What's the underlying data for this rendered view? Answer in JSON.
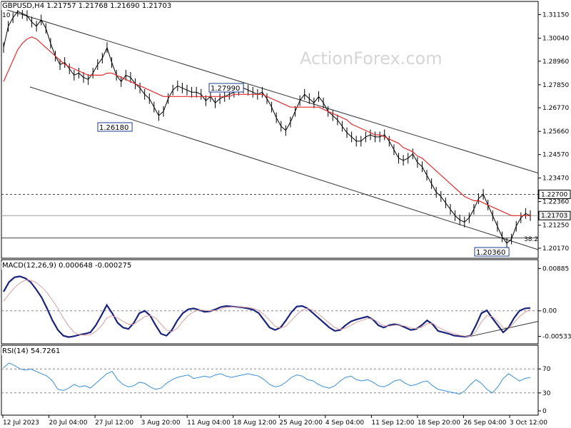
{
  "watermark": "ActionForex.com",
  "chart_data": [
    {
      "type": "line",
      "title": "GBPUSD,H4  1.21757 1.21768 1.21690 1.21703",
      "symbol": "GBPUSD,H4",
      "ohlc_last": {
        "open": 1.21757,
        "high": 1.21768,
        "low": 1.2169,
        "close": 1.21703
      },
      "y_ticks": [
        "1.31150",
        "1.30040",
        "1.28960",
        "1.27850",
        "1.26770",
        "1.25660",
        "1.24570",
        "1.23470",
        "1.22360",
        "1.21250",
        "1.20170"
      ],
      "ylim": [
        1.2017,
        1.3115
      ],
      "price_tags": [
        {
          "label": "1.22700",
          "value": 1.227,
          "style": "dashed"
        },
        {
          "label": "1.21703",
          "value": 1.21703,
          "style": "current"
        }
      ],
      "annotations": [
        {
          "label": "1.27990",
          "x": "18 Aug 12:00",
          "y": 1.2799
        },
        {
          "label": "1.26180",
          "x": "3 Aug 20:00",
          "y": 1.2618
        },
        {
          "label": "1.20360",
          "x": "3 Oct 12:00",
          "y": 1.2036
        },
        {
          "label": "38.2",
          "x": "3 Oct 12:00",
          "y": 1.2145
        },
        {
          "label": "10",
          "x": "12 Jul 2023",
          "y": 1.3142
        }
      ],
      "horizontal_levels": [
        1.227,
        1.21703,
        1.2065
      ],
      "channel": {
        "upper_start": [
          "12 Jul 2023",
          1.3142
        ],
        "upper_end": [
          "3 Oct 12:00",
          1.2389
        ],
        "lower_start": [
          "20 Jul 04:00",
          1.2775
        ],
        "lower_end": [
          "3 Oct 12:00",
          1.2028
        ]
      },
      "series": [
        {
          "name": "price",
          "color": "#000000",
          "values": [
            1.296,
            1.306,
            1.31,
            1.313,
            1.312,
            1.311,
            1.308,
            1.306,
            1.309,
            1.305,
            1.298,
            1.292,
            1.288,
            1.289,
            1.286,
            1.283,
            1.284,
            1.282,
            1.281,
            1.284,
            1.288,
            1.291,
            1.296,
            1.289,
            1.283,
            1.28,
            1.283,
            1.282,
            1.279,
            1.277,
            1.274,
            1.272,
            1.268,
            1.264,
            1.266,
            1.272,
            1.276,
            1.278,
            1.277,
            1.276,
            1.275,
            1.275,
            1.274,
            1.271,
            1.273,
            1.27,
            1.272,
            1.273,
            1.274,
            1.275,
            1.276,
            1.277,
            1.276,
            1.275,
            1.274,
            1.275,
            1.272,
            1.268,
            1.263,
            1.259,
            1.257,
            1.261,
            1.266,
            1.271,
            1.274,
            1.272,
            1.27,
            1.273,
            1.27,
            1.266,
            1.264,
            1.262,
            1.259,
            1.256,
            1.254,
            1.252,
            1.252,
            1.254,
            1.255,
            1.254,
            1.254,
            1.255,
            1.252,
            1.248,
            1.244,
            1.243,
            1.244,
            1.246,
            1.242,
            1.24,
            1.236,
            1.232,
            1.228,
            1.226,
            1.223,
            1.22,
            1.217,
            1.215,
            1.214,
            1.216,
            1.22,
            1.225,
            1.227,
            1.222,
            1.217,
            1.212,
            1.207,
            1.204,
            1.206,
            1.212,
            1.216,
            1.218,
            1.217
          ]
        },
        {
          "name": "ma",
          "color": "#e32d2d",
          "values": [
            1.28,
            1.285,
            1.29,
            1.295,
            1.298,
            1.3,
            1.301,
            1.3,
            1.298,
            1.296,
            1.294,
            1.292,
            1.29,
            1.288,
            1.287,
            1.286,
            1.285,
            1.284,
            1.283,
            1.283,
            1.283,
            1.283,
            1.284,
            1.284,
            1.283,
            1.282,
            1.281,
            1.28,
            1.279,
            1.278,
            1.277,
            1.276,
            1.275,
            1.274,
            1.273,
            1.273,
            1.273,
            1.273,
            1.273,
            1.273,
            1.273,
            1.273,
            1.273,
            1.273,
            1.273,
            1.273,
            1.273,
            1.273,
            1.273,
            1.274,
            1.274,
            1.274,
            1.274,
            1.274,
            1.274,
            1.274,
            1.273,
            1.272,
            1.271,
            1.27,
            1.269,
            1.268,
            1.268,
            1.268,
            1.268,
            1.268,
            1.268,
            1.268,
            1.267,
            1.266,
            1.265,
            1.264,
            1.263,
            1.262,
            1.26,
            1.259,
            1.258,
            1.257,
            1.256,
            1.255,
            1.255,
            1.254,
            1.253,
            1.252,
            1.251,
            1.249,
            1.248,
            1.247,
            1.245,
            1.244,
            1.242,
            1.24,
            1.238,
            1.236,
            1.234,
            1.232,
            1.23,
            1.228,
            1.226,
            1.225,
            1.224,
            1.224,
            1.223,
            1.222,
            1.221,
            1.22,
            1.219,
            1.218,
            1.217,
            1.217,
            1.217,
            1.217,
            1.217
          ]
        }
      ]
    },
    {
      "type": "line",
      "title": "MACD(12,26,9) 0.000648 -0.000275",
      "y_ticks": [
        "0.00885",
        "0.00",
        "-0.005334"
      ],
      "ylim": [
        -0.006,
        0.0095
      ],
      "series": [
        {
          "name": "macd",
          "color": "#1a237e",
          "values": [
            0.004,
            0.006,
            0.007,
            0.0072,
            0.0068,
            0.006,
            0.0045,
            0.0028,
            0.0005,
            -0.002,
            -0.004,
            -0.0052,
            -0.0055,
            -0.0053,
            -0.005,
            -0.0048,
            -0.0045,
            -0.003,
            -0.001,
            0.0012,
            -0.0005,
            -0.0025,
            -0.0035,
            -0.0038,
            -0.0025,
            -0.0005,
            0.0,
            -0.001,
            -0.003,
            -0.0048,
            -0.0052,
            -0.004,
            -0.002,
            -0.0005,
            0.0003,
            0.0005,
            0.0002,
            -0.0002,
            -0.0001,
            0.0003,
            0.0008,
            0.001,
            0.0009,
            0.0008,
            0.0007,
            0.0005,
            0.0002,
            -0.0005,
            -0.002,
            -0.0035,
            -0.004,
            -0.0035,
            -0.002,
            -0.0003,
            0.0009,
            0.001,
            0.0005,
            -0.0005,
            -0.0015,
            -0.0025,
            -0.0035,
            -0.0042,
            -0.004,
            -0.003,
            -0.0022,
            -0.0018,
            -0.0015,
            -0.0012,
            -0.0018,
            -0.003,
            -0.0035,
            -0.003,
            -0.0028,
            -0.003,
            -0.0035,
            -0.004,
            -0.0038,
            -0.003,
            -0.002,
            -0.0028,
            -0.0042,
            -0.0045,
            -0.0048,
            -0.0052,
            -0.0053,
            -0.0054,
            -0.0052,
            -0.003,
            -0.0005,
            0.0001,
            -0.0015,
            -0.003,
            -0.0045,
            -0.0035,
            -0.0015,
            0.0,
            0.0005,
            0.0006
          ]
        },
        {
          "name": "signal",
          "color": "#d9a0a0",
          "values": [
            0.002,
            0.0035,
            0.0048,
            0.0058,
            0.0064,
            0.0064,
            0.0059,
            0.005,
            0.0038,
            0.0022,
            0.0005,
            -0.0015,
            -0.0032,
            -0.0045,
            -0.005,
            -0.0051,
            -0.005,
            -0.0043,
            -0.0032,
            -0.0015,
            -0.001,
            -0.0015,
            -0.0022,
            -0.0028,
            -0.0028,
            -0.002,
            -0.0012,
            -0.001,
            -0.0015,
            -0.0028,
            -0.004,
            -0.0044,
            -0.0036,
            -0.0022,
            -0.001,
            -0.0002,
            0.0002,
            0.0001,
            0.0,
            0.0001,
            0.0004,
            0.0007,
            0.0008,
            0.0008,
            0.0008,
            0.0007,
            0.0005,
            0.0001,
            -0.0008,
            -0.002,
            -0.0032,
            -0.0036,
            -0.0032,
            -0.002,
            -0.0008,
            0.0002,
            0.0005,
            0.0001,
            -0.0007,
            -0.0016,
            -0.0026,
            -0.0035,
            -0.0039,
            -0.0036,
            -0.003,
            -0.0024,
            -0.002,
            -0.0016,
            -0.0017,
            -0.0024,
            -0.0031,
            -0.0032,
            -0.003,
            -0.003,
            -0.0032,
            -0.0036,
            -0.0037,
            -0.0034,
            -0.0027,
            -0.0026,
            -0.0034,
            -0.004,
            -0.0044,
            -0.0048,
            -0.0051,
            -0.0053,
            -0.0053,
            -0.0043,
            -0.0023,
            -0.001,
            -0.0012,
            -0.0022,
            -0.0035,
            -0.0036,
            -0.0025,
            -0.0012,
            -0.0003,
            0.0003
          ]
        }
      ],
      "trendline": {
        "from": [
          "26 Sep 04:00",
          -0.0053
        ],
        "to": [
          "3 Oct 12:00",
          -0.0034
        ]
      }
    },
    {
      "type": "line",
      "title": "RSI(14) 54.7261",
      "y_ticks": [
        "70",
        "30",
        "0"
      ],
      "ylim": [
        0,
        100
      ],
      "series": [
        {
          "name": "rsi",
          "color": "#3a8fd8",
          "values": [
            72,
            80,
            76,
            70,
            68,
            70,
            66,
            62,
            58,
            50,
            36,
            34,
            38,
            44,
            40,
            42,
            38,
            46,
            54,
            62,
            66,
            52,
            44,
            40,
            42,
            48,
            46,
            40,
            36,
            38,
            46,
            52,
            56,
            58,
            60,
            54,
            56,
            58,
            56,
            60,
            62,
            58,
            56,
            58,
            60,
            62,
            60,
            58,
            52,
            44,
            40,
            42,
            48,
            56,
            60,
            58,
            52,
            50,
            44,
            40,
            38,
            42,
            50,
            56,
            58,
            52,
            50,
            52,
            48,
            42,
            40,
            44,
            50,
            52,
            46,
            42,
            44,
            48,
            50,
            42,
            36,
            34,
            32,
            30,
            28,
            34,
            44,
            52,
            46,
            36,
            30,
            40,
            54,
            62,
            56,
            50,
            54,
            56
          ]
        }
      ]
    }
  ],
  "time_labels": [
    "12 Jul 2023",
    "20 Jul 04:00",
    "27 Jul 12:00",
    "3 Aug 20:00",
    "11 Aug 04:00",
    "18 Aug 12:00",
    "25 Aug 20:00",
    "4 Sep 04:00",
    "11 Sep 12:00",
    "18 Sep 20:00",
    "26 Sep 04:00",
    "3 Oct 12:00"
  ]
}
